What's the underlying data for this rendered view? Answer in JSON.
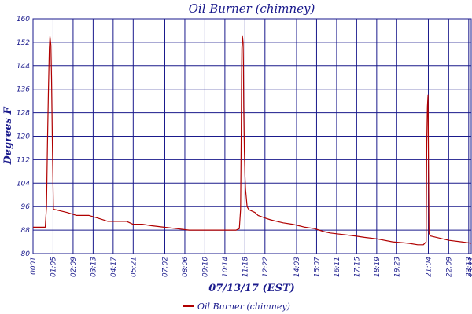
{
  "chart_data": {
    "type": "line",
    "title": "Oil Burner (chimney)",
    "xlabel": "07/13/17 (EST)",
    "ylabel": "Degrees F",
    "ylim": [
      80,
      160
    ],
    "yticks": [
      80,
      88,
      96,
      104,
      112,
      120,
      128,
      136,
      144,
      152,
      160
    ],
    "xlim": [
      1,
      1401
    ],
    "xticks": [
      {
        "label": "0001",
        "t": 1
      },
      {
        "label": "01:05",
        "t": 65
      },
      {
        "label": "02:09",
        "t": 129
      },
      {
        "label": "03:13",
        "t": 193
      },
      {
        "label": "04:17",
        "t": 257
      },
      {
        "label": "05:21",
        "t": 321
      },
      {
        "label": "07:02",
        "t": 422
      },
      {
        "label": "08:06",
        "t": 486
      },
      {
        "label": "09:10",
        "t": 550
      },
      {
        "label": "10:14",
        "t": 614
      },
      {
        "label": "11:18",
        "t": 678
      },
      {
        "label": "12:22",
        "t": 742
      },
      {
        "label": "14:03",
        "t": 843
      },
      {
        "label": "15:07",
        "t": 907
      },
      {
        "label": "16:11",
        "t": 971
      },
      {
        "label": "17:15",
        "t": 1035
      },
      {
        "label": "18:19",
        "t": 1099
      },
      {
        "label": "19:23",
        "t": 1163
      },
      {
        "label": "21:04",
        "t": 1264
      },
      {
        "label": "22:09",
        "t": 1329
      },
      {
        "label": "23:13",
        "t": 1393
      },
      {
        "label": "23:21",
        "t": 1401
      }
    ],
    "grid": true,
    "legend_position": "bottom",
    "series": [
      {
        "name": "Oil Burner (chimney)",
        "color": "#b00000",
        "t": [
          1,
          40,
          44,
          47,
          50,
          53,
          55,
          58,
          60,
          63,
          66,
          71,
          110,
          140,
          180,
          210,
          240,
          300,
          320,
          350,
          380,
          420,
          460,
          500,
          540,
          600,
          620,
          650,
          660,
          664,
          666,
          667,
          668,
          670,
          672,
          673,
          674,
          676,
          678,
          680,
          685,
          690,
          700,
          710,
          720,
          745,
          760,
          780,
          800,
          830,
          850,
          870,
          900,
          930,
          950,
          990,
          1030,
          1060,
          1100,
          1150,
          1200,
          1230,
          1248,
          1257,
          1259,
          1261,
          1263,
          1266,
          1270,
          1290,
          1330,
          1370,
          1401
        ],
        "y": [
          89,
          89,
          96,
          117,
          135,
          150,
          154,
          151,
          140,
          115,
          95,
          95,
          94,
          93,
          93,
          92,
          91,
          91,
          90,
          90,
          89.5,
          89,
          88.5,
          88,
          88,
          88,
          88,
          88,
          88.5,
          95,
          120,
          140,
          150,
          154,
          152,
          145,
          130,
          115,
          107,
          102,
          96,
          95,
          94.5,
          94,
          93,
          92,
          91.5,
          91,
          90.5,
          90,
          89.5,
          89,
          88.5,
          87.5,
          87,
          86.5,
          86,
          85.5,
          85,
          84,
          83.5,
          83,
          83,
          84,
          118,
          130,
          134,
          87,
          86,
          85.5,
          84.5,
          84,
          83.5
        ]
      }
    ]
  }
}
